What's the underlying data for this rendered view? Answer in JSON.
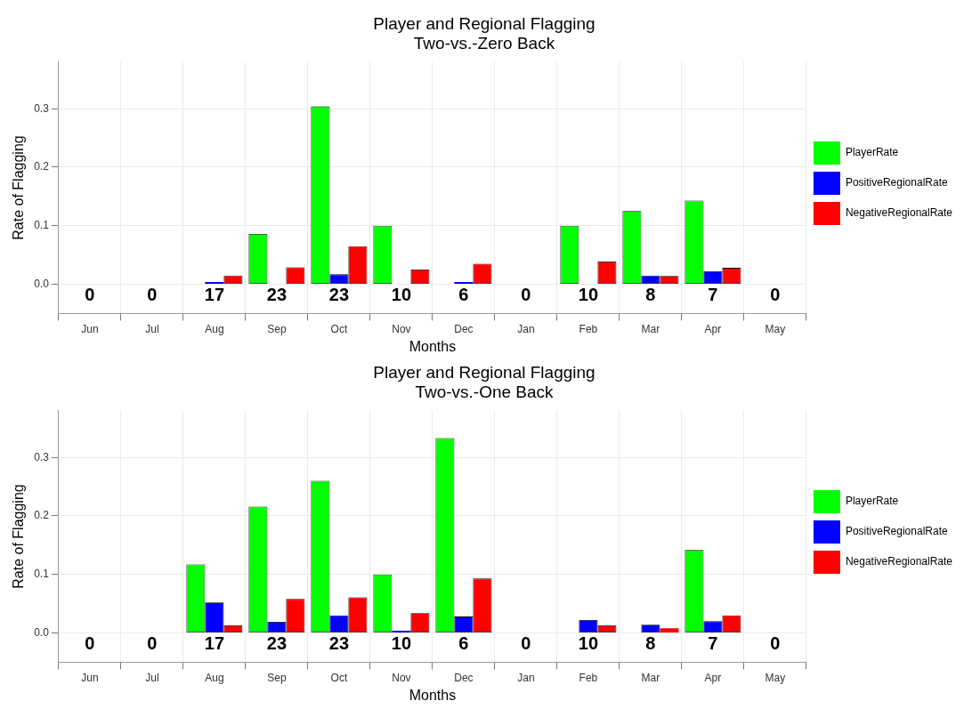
{
  "chart_data": [
    {
      "type": "bar",
      "title": "Player and Regional Flagging",
      "subtitle": "Two-vs.-Zero Back",
      "xlabel": "Months",
      "ylabel": "Rate of Flagging",
      "categories": [
        "Jun",
        "Jul",
        "Aug",
        "Sep",
        "Oct",
        "Nov",
        "Dec",
        "Jan",
        "Feb",
        "Mar",
        "Apr",
        "May"
      ],
      "series": [
        {
          "name": "PlayerRate",
          "color": "#00ff00",
          "values": [
            0,
            0,
            0,
            0.086,
            0.304,
            0.1,
            0,
            0,
            0.1,
            0.125,
            0.143,
            0
          ]
        },
        {
          "name": "PositiveRegionalRate",
          "color": "#0000ff",
          "values": [
            0,
            0,
            0.004,
            0,
            0.017,
            0,
            0.004,
            0,
            0,
            0.015,
            0.022,
            0
          ]
        },
        {
          "name": "NegativeRegionalRate",
          "color": "#ff0000",
          "values": [
            0,
            0,
            0.015,
            0.029,
            0.065,
            0.025,
            0.035,
            0,
            0.039,
            0.014,
            0.028,
            0
          ]
        }
      ],
      "ylim": [
        -0.05,
        0.38
      ],
      "yticks": [
        {
          "value": 0,
          "label": "0.0"
        },
        {
          "value": 0.1,
          "label": "0.1"
        },
        {
          "value": 0.2,
          "label": "0.2"
        },
        {
          "value": 0.3,
          "label": "0.3"
        }
      ],
      "grid": true,
      "legend": "right",
      "annotations": [
        "0",
        "0",
        "17",
        "23",
        "23",
        "10",
        "6",
        "0",
        "10",
        "8",
        "7",
        "0"
      ]
    },
    {
      "type": "bar",
      "title": "Player and Regional Flagging",
      "subtitle": "Two-vs.-One Back",
      "xlabel": "Months",
      "ylabel": "Rate of Flagging",
      "categories": [
        "Jun",
        "Jul",
        "Aug",
        "Sep",
        "Oct",
        "Nov",
        "Dec",
        "Jan",
        "Feb",
        "Mar",
        "Apr",
        "May"
      ],
      "series": [
        {
          "name": "PlayerRate",
          "color": "#00ff00",
          "values": [
            0,
            0,
            0.117,
            0.216,
            0.26,
            0.1,
            0.333,
            0,
            0,
            0,
            0.142,
            0
          ]
        },
        {
          "name": "PositiveRegionalRate",
          "color": "#0000ff",
          "values": [
            0,
            0,
            0.052,
            0.019,
            0.03,
            0.004,
            0.028,
            0,
            0.022,
            0.014,
            0.02,
            0
          ]
        },
        {
          "name": "NegativeRegionalRate",
          "color": "#ff0000",
          "values": [
            0,
            0,
            0.013,
            0.058,
            0.061,
            0.034,
            0.093,
            0,
            0.013,
            0.008,
            0.03,
            0
          ]
        }
      ],
      "ylim": [
        -0.05,
        0.38
      ],
      "yticks": [
        {
          "value": 0,
          "label": "0.0"
        },
        {
          "value": 0.1,
          "label": "0.1"
        },
        {
          "value": 0.2,
          "label": "0.2"
        },
        {
          "value": 0.3,
          "label": "0.3"
        }
      ],
      "grid": true,
      "legend": "right",
      "annotations": [
        "0",
        "0",
        "17",
        "23",
        "23",
        "10",
        "6",
        "0",
        "10",
        "8",
        "7",
        "0"
      ]
    }
  ]
}
